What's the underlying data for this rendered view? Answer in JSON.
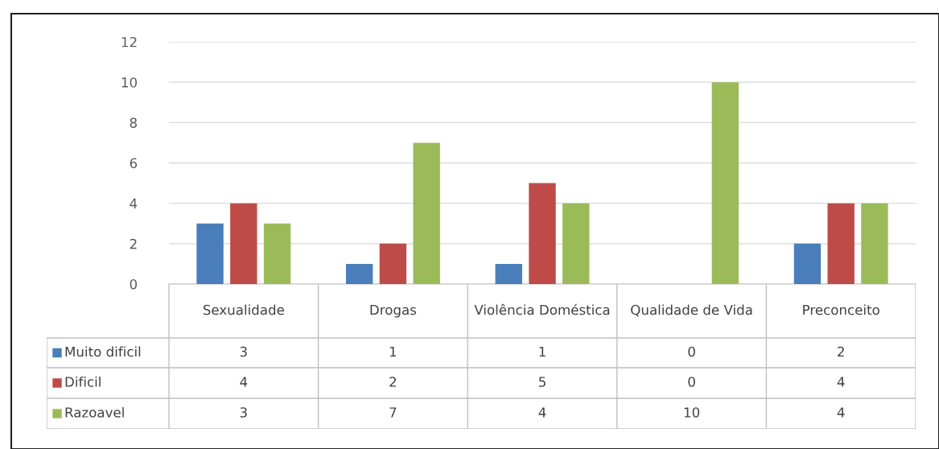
{
  "chart_data": {
    "type": "bar",
    "categories": [
      "Sexualidade",
      "Drogas",
      "Violência Doméstica",
      "Qualidade de Vida",
      "Preconceito"
    ],
    "series": [
      {
        "name": "Muito dificil",
        "color": "#4a7ebb",
        "values": [
          3,
          1,
          1,
          0,
          2
        ]
      },
      {
        "name": "Dificil",
        "color": "#be4b48",
        "values": [
          4,
          2,
          5,
          0,
          4
        ]
      },
      {
        "name": "Razoavel",
        "color": "#9bbb59",
        "values": [
          3,
          7,
          4,
          10,
          4
        ]
      }
    ],
    "ylim": [
      0,
      12
    ],
    "yticks": [
      0,
      2,
      4,
      6,
      8,
      10,
      12
    ],
    "grid": "y",
    "legend": "bottom left",
    "data_labels": true
  }
}
